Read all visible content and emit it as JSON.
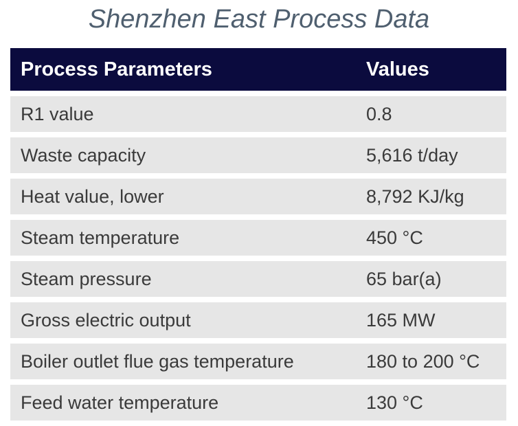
{
  "title": "Shenzhen East Process Data",
  "table": {
    "header": [
      "Process Parameters",
      "Values"
    ],
    "rows": [
      [
        "R1 value",
        "0.8"
      ],
      [
        "Waste capacity",
        "5,616 t/day"
      ],
      [
        "Heat value, lower",
        "8,792 KJ/kg"
      ],
      [
        "Steam temperature",
        "450 °C"
      ],
      [
        "Steam pressure",
        "65 bar(a)"
      ],
      [
        "Gross electric output",
        "165 MW"
      ],
      [
        "Boiler outlet flue gas temperature",
        "180 to 200 °C"
      ],
      [
        "Feed water temperature",
        "130 °C"
      ]
    ]
  }
}
